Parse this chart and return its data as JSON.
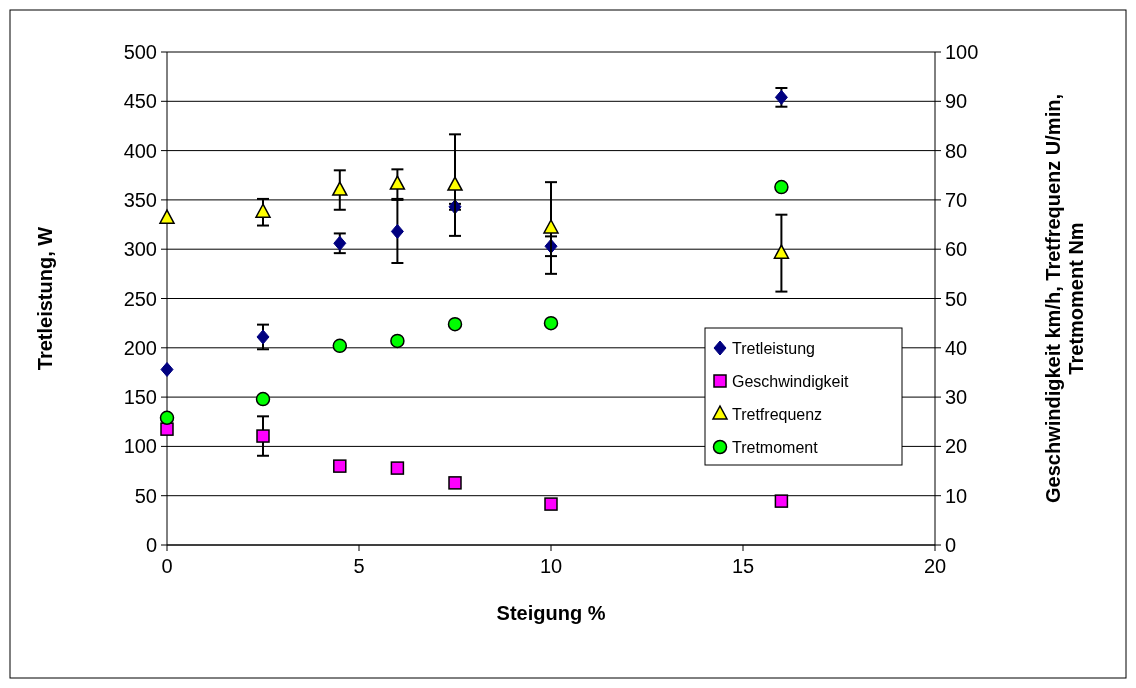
{
  "chart_data": {
    "type": "scatter",
    "xlabel": "Steigung %",
    "ylabel": "Tretleistung, W",
    "y2label": "Geschwindigkeit km/h, Tretfrequenz U/min, Tretmoment Nm",
    "x": [
      0,
      2.5,
      4.5,
      6,
      7.5,
      10,
      16
    ],
    "xlim": [
      0,
      20
    ],
    "xticks": [
      0,
      5,
      10,
      15,
      20
    ],
    "ylim": [
      0,
      500
    ],
    "yticks": [
      0,
      50,
      100,
      150,
      200,
      250,
      300,
      350,
      400,
      450,
      500
    ],
    "y2lim": [
      0,
      100
    ],
    "y2ticks": [
      0,
      10,
      20,
      30,
      40,
      50,
      60,
      70,
      80,
      90,
      100
    ],
    "grid": "y",
    "legend": "right",
    "series": [
      {
        "name": "Tretleistung",
        "color": "#000080",
        "marker": "diamond",
        "values": [
          178,
          211,
          306,
          318,
          343,
          303,
          454
        ],
        "errors": [
          null,
          12.5,
          10,
          32,
          3,
          10,
          9.5
        ]
      },
      {
        "name": "Geschwindigkeit",
        "color": "#ff00ff",
        "marker": "square",
        "axis": "y2",
        "values": [
          23.5,
          22.1,
          16.0,
          15.6,
          12.6,
          8.3,
          8.9
        ],
        "errors": [
          null,
          4,
          null,
          null,
          null,
          null,
          null
        ]
      },
      {
        "name": "Tretfrequenz",
        "color": "#ffff00",
        "marker": "triangle",
        "axis": "y2",
        "values": [
          66.3,
          67.5,
          72,
          73.2,
          73,
          64.3,
          59.2
        ],
        "errors": [
          null,
          2.7,
          4,
          3,
          10.3,
          9.3,
          7.8
        ]
      },
      {
        "name": "Tretmoment",
        "color": "#00ff00",
        "marker": "circle",
        "axis": "y2",
        "values": [
          25.8,
          29.6,
          40.4,
          41.4,
          44.8,
          45.0,
          72.6
        ]
      }
    ]
  }
}
